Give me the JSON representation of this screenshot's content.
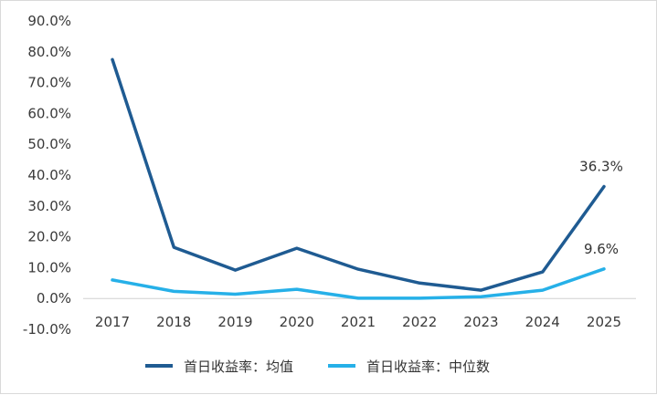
{
  "chart_data": {
    "type": "line",
    "categories": [
      "2017",
      "2018",
      "2019",
      "2020",
      "2021",
      "2022",
      "2023",
      "2024",
      "2025"
    ],
    "ylim": [
      -10,
      90
    ],
    "yticks": [
      "90.0%",
      "80.0%",
      "70.0%",
      "60.0%",
      "50.0%",
      "40.0%",
      "30.0%",
      "20.0%",
      "10.0%",
      "0.0%",
      "-10.0%"
    ],
    "grid": false,
    "legend_position": "bottom",
    "series": [
      {
        "name": "首日收益率：均值",
        "color": "#1f5b92",
        "values": [
          77.5,
          16.6,
          9.2,
          16.3,
          9.5,
          5.0,
          2.7,
          8.6,
          36.3
        ],
        "end_label": "36.3%"
      },
      {
        "name": "首日收益率：中位数",
        "color": "#26b0e8",
        "values": [
          6.0,
          2.3,
          1.4,
          3.0,
          0.1,
          0.1,
          0.6,
          2.7,
          9.6
        ],
        "end_label": "9.6%"
      }
    ]
  }
}
